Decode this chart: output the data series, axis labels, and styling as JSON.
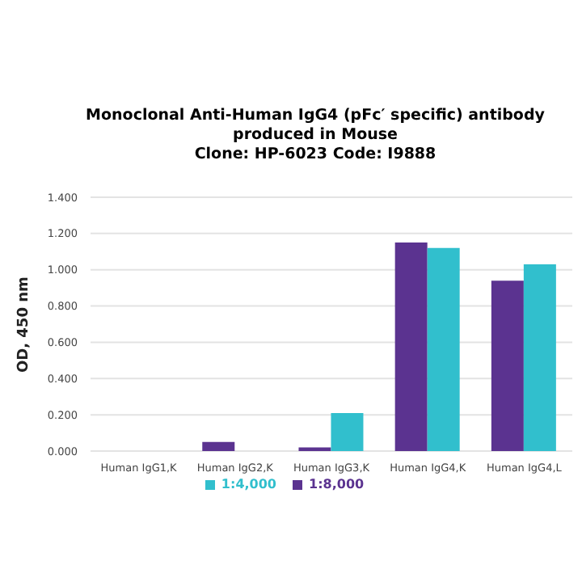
{
  "chart_data": {
    "type": "bar",
    "title": "Monoclonal Anti-Human IgG4 (pFc′ specific) antibody\nproduced in Mouse\nClone: HP-6023  Code: I9888",
    "ylabel": "OD, 450 nm",
    "categories": [
      "Human IgG1,K",
      "Human IgG2,K",
      "Human IgG3,K",
      "Human IgG4,K",
      "Human IgG4,L"
    ],
    "series": [
      {
        "name": "1:8,000",
        "color": "#5b3390",
        "values": [
          0,
          0.05,
          0.02,
          1.15,
          0.94
        ]
      },
      {
        "name": "1:4,000",
        "color": "#31bfcd",
        "values": [
          0,
          0,
          0.21,
          1.12,
          1.03
        ]
      }
    ],
    "ylim": [
      0,
      1.4
    ],
    "yticks": [
      {
        "value": 0,
        "label": "0.000"
      },
      {
        "value": 0.2,
        "label": "0.200"
      },
      {
        "value": 0.4,
        "label": "0.400"
      },
      {
        "value": 0.6,
        "label": "0.600"
      },
      {
        "value": 0.8,
        "label": "0.800"
      },
      {
        "value": 1,
        "label": "1.000"
      },
      {
        "value": 1.2,
        "label": "1.200"
      },
      {
        "value": 1.4,
        "label": "1.400"
      }
    ],
    "grid": "y",
    "legend": "bottom"
  }
}
